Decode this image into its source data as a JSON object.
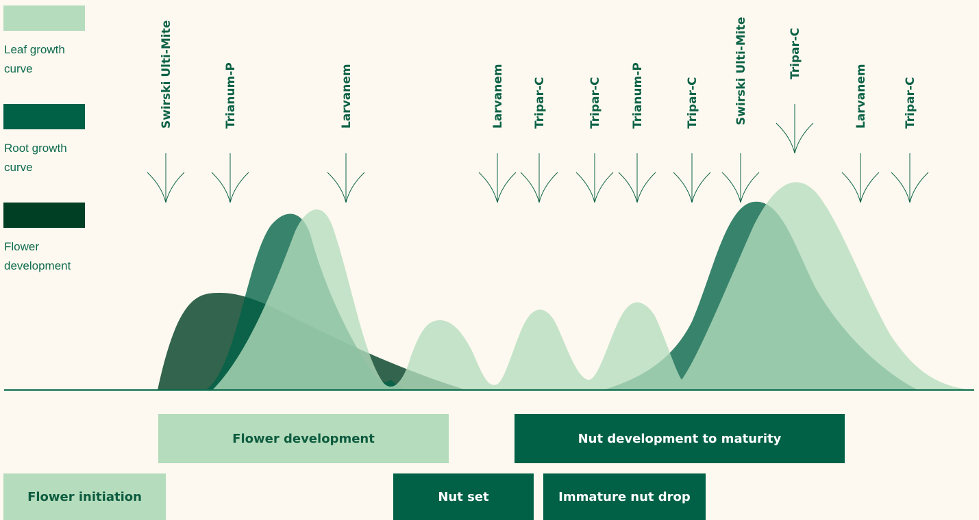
{
  "colors": {
    "background": "#fdf9f0",
    "leaf": "#b5dcbc",
    "root": "#006147",
    "flower": "#003f24",
    "baseline": "#0b6b4c",
    "label": "#0d6246"
  },
  "legend": [
    {
      "label": "Leaf growth curve",
      "color": "#b5dcbc"
    },
    {
      "label": "Root growth curve",
      "color": "#006147"
    },
    {
      "label": "Flower development",
      "color": "#003f24"
    }
  ],
  "applications": [
    {
      "label": "Swirski Ulti-Mite"
    },
    {
      "label": "Trianum-P"
    },
    {
      "label": "Larvanem"
    },
    {
      "label": "Larvanem"
    },
    {
      "label": "Tripar-C"
    },
    {
      "label": "Tripar-C"
    },
    {
      "label": "Trianum-P"
    },
    {
      "label": "Tripar-C"
    },
    {
      "label": "Swirski Ulti-Mite"
    },
    {
      "label": "Tripar-C"
    },
    {
      "label": "Larvanem"
    },
    {
      "label": "Tripar-C"
    }
  ],
  "stages": {
    "flower_development": "Flower development",
    "nut_development": "Nut development to maturity",
    "flower_initiation": "Flower initiation",
    "nut_set": "Nut set",
    "immature_nut_drop": "Immature nut drop"
  }
}
